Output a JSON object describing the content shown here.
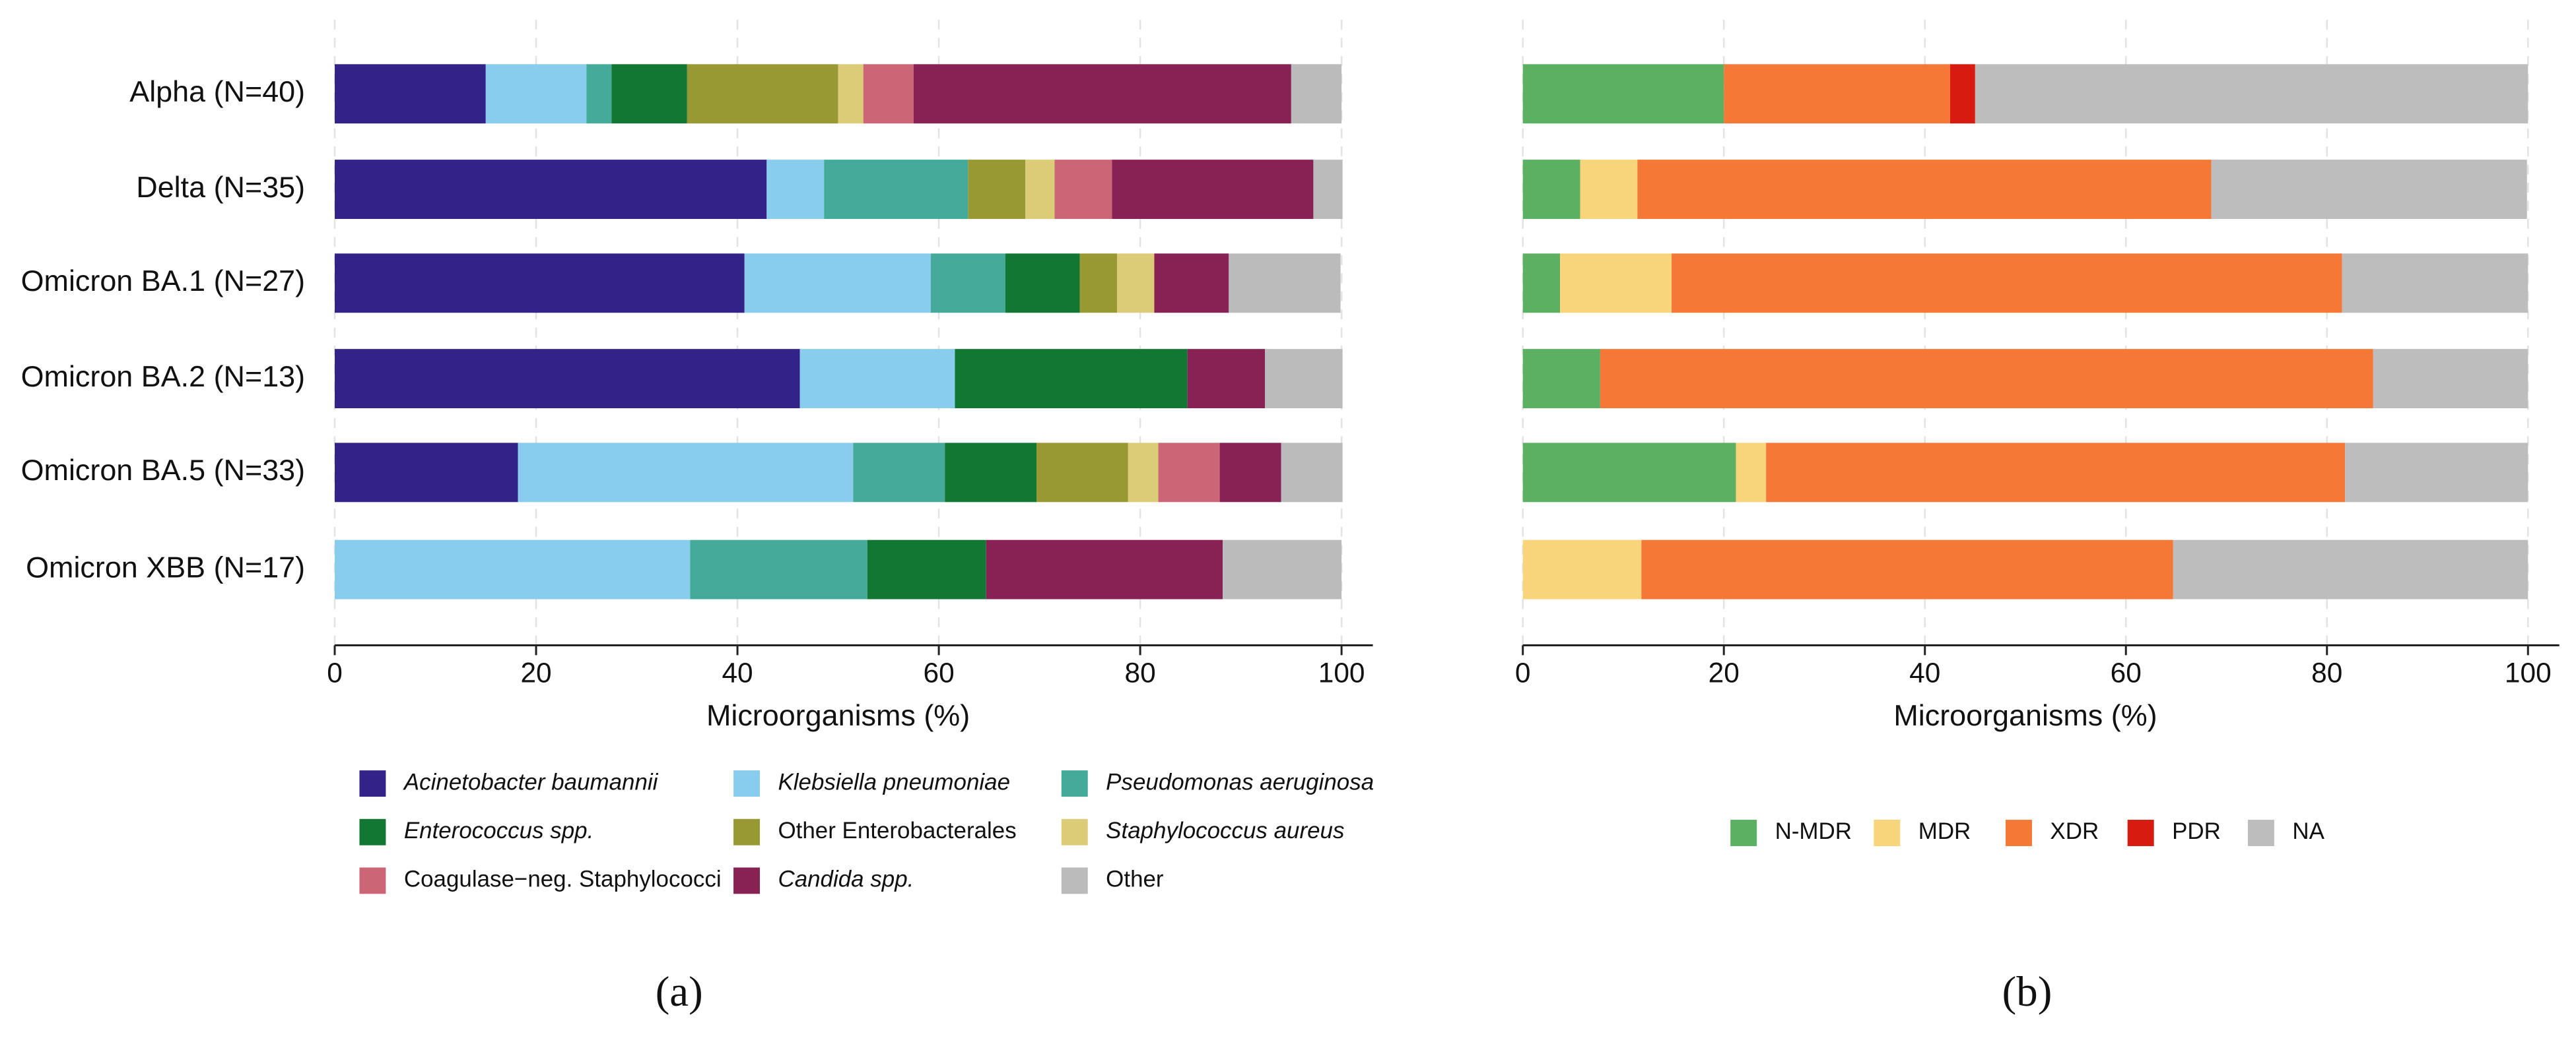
{
  "chart_data": [
    {
      "type": "bar",
      "orientation": "horizontal",
      "stacked": true,
      "panel_label": "(a)",
      "xlabel": "Microorganisms (%)",
      "categories": [
        "Alpha (N=40)",
        "Delta (N=35)",
        "Omicron BA.1 (N=27)",
        "Omicron BA.2 (N=13)",
        "Omicron BA.5 (N=33)",
        "Omicron XBB (N=17)"
      ],
      "xlim": [
        0,
        100
      ],
      "xticks": [
        0,
        20,
        40,
        60,
        80,
        100
      ],
      "grid": true,
      "series": [
        {
          "name": "Acinetobacter baumannii",
          "color": "#332288",
          "values": [
            15,
            42.9,
            40.7,
            46.2,
            18.2,
            0
          ]
        },
        {
          "name": "Klebsiella pneumoniae",
          "color": "#88ccee",
          "values": [
            10,
            5.7,
            18.5,
            15.4,
            33.3,
            35.3
          ]
        },
        {
          "name": "Pseudomonas aeruginosa",
          "color": "#44aa99",
          "values": [
            2.5,
            14.3,
            7.4,
            0,
            9.1,
            17.6
          ]
        },
        {
          "name": "Enterococcus spp.",
          "color": "#117733",
          "values": [
            7.5,
            0,
            7.4,
            23.1,
            9.1,
            11.8
          ]
        },
        {
          "name": "Other  Enterobacterales",
          "color": "#999933",
          "values": [
            15,
            5.7,
            3.7,
            0,
            9.1,
            0
          ]
        },
        {
          "name": "Staphylococcus aureus",
          "color": "#ddcc77",
          "values": [
            2.5,
            2.9,
            3.7,
            0,
            3.0,
            0
          ]
        },
        {
          "name": "Coagulase−neg.  Staphylococci",
          "color": "#cc6677",
          "values": [
            5,
            5.7,
            0,
            0,
            6.1,
            0
          ]
        },
        {
          "name": "Candida spp.",
          "color": "#882255",
          "values": [
            37.5,
            20,
            7.4,
            7.7,
            6.1,
            23.5
          ]
        },
        {
          "name": "Other",
          "color": "#bbbbbb",
          "values": [
            5,
            2.9,
            11.1,
            7.7,
            6.1,
            11.8
          ]
        }
      ]
    },
    {
      "type": "bar",
      "orientation": "horizontal",
      "stacked": true,
      "panel_label": "(b)",
      "xlabel": "Microorganisms (%)",
      "xlim": [
        0,
        100
      ],
      "xticks": [
        0,
        20,
        40,
        60,
        80,
        100
      ],
      "grid": true,
      "series": [
        {
          "name": "N-MDR",
          "color": "#5bb062",
          "values": [
            20,
            5.7,
            3.7,
            7.7,
            21.2,
            0
          ]
        },
        {
          "name": "MDR",
          "color": "#f8d57a",
          "values": [
            0,
            5.7,
            11.1,
            0,
            3.0,
            11.8
          ]
        },
        {
          "name": "XDR",
          "color": "#f47836",
          "values": [
            22.5,
            57.1,
            66.7,
            76.9,
            57.6,
            52.9
          ]
        },
        {
          "name": "PDR",
          "color": "#d81b10",
          "values": [
            2.5,
            0,
            0,
            0,
            0,
            0
          ]
        },
        {
          "name": "NA",
          "color": "#bdbdbd",
          "values": [
            55,
            31.4,
            18.5,
            15.4,
            18.2,
            35.3
          ]
        }
      ]
    }
  ]
}
